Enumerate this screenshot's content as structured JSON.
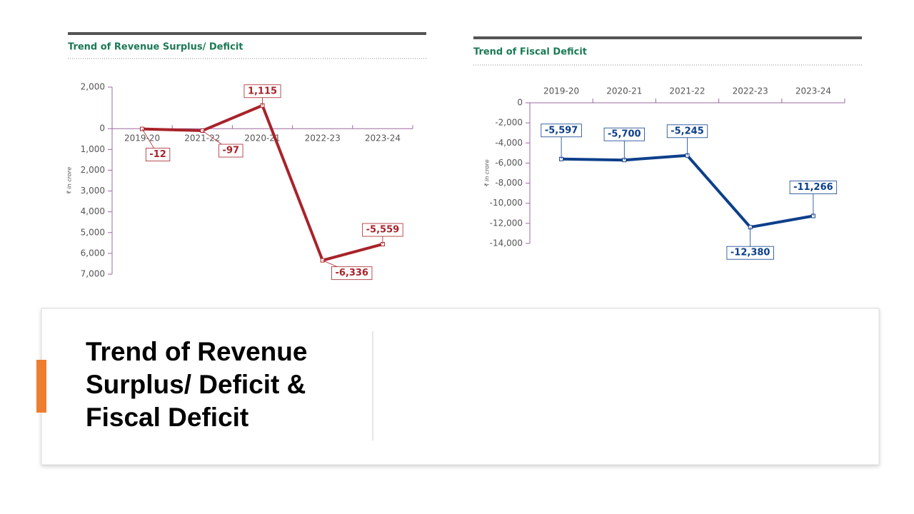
{
  "slide_title": "Trend of Revenue Surplus/ Deficit & Fiscal Deficit",
  "chart_data": [
    {
      "type": "line",
      "title": "Trend of Revenue Surplus/ Deficit",
      "y_label": "₹ in crore",
      "categories": [
        "2019-20",
        "2021-22",
        "2020-21",
        "2022-23",
        "2023-24"
      ],
      "series": [
        {
          "name": "Revenue Surplus/ Deficit",
          "color": "#a8232a",
          "values": [
            -12,
            -97,
            1115,
            -6336,
            -5559
          ],
          "value_labels": [
            "-12",
            "-97",
            "1,115",
            "-6,336",
            "-5,559"
          ]
        }
      ],
      "ylim": [
        -7000,
        2000
      ],
      "yticks": [
        {
          "value": 2000,
          "label": "2,000"
        },
        0,
        {
          "value": -1000,
          "label": "1,000"
        },
        {
          "value": -2000,
          "label": "2,000"
        },
        {
          "value": -3000,
          "label": "3,000"
        },
        {
          "value": -4000,
          "label": "4,000"
        },
        {
          "value": -5000,
          "label": "5,000"
        },
        {
          "value": -6000,
          "label": "6,000"
        },
        {
          "value": -7000,
          "label": "7,000"
        }
      ]
    },
    {
      "type": "line",
      "title": "Trend of Fiscal Deficit",
      "y_label": "₹ in crore",
      "categories": [
        "2019-20",
        "2020-21",
        "2021-22",
        "2022-23",
        "2023-24"
      ],
      "series": [
        {
          "name": "Fiscal Deficit",
          "color": "#0d3f8a",
          "values": [
            -5597,
            -5700,
            -5245,
            -12380,
            -11266
          ],
          "value_labels": [
            "-5,597",
            "-5,700",
            "-5,245",
            "-12,380",
            "-11,266"
          ]
        }
      ],
      "ylim": [
        -14000,
        0
      ],
      "yticks": [
        0,
        {
          "value": -2000,
          "label": "-2,000"
        },
        {
          "value": -4000,
          "label": "-4,000"
        },
        {
          "value": -6000,
          "label": "-6,000"
        },
        {
          "value": -8000,
          "label": "-8,000"
        },
        {
          "value": -10000,
          "label": "-10,000"
        },
        {
          "value": -12000,
          "label": "-12,000"
        },
        {
          "value": -14000,
          "label": "-14,000"
        }
      ]
    }
  ]
}
